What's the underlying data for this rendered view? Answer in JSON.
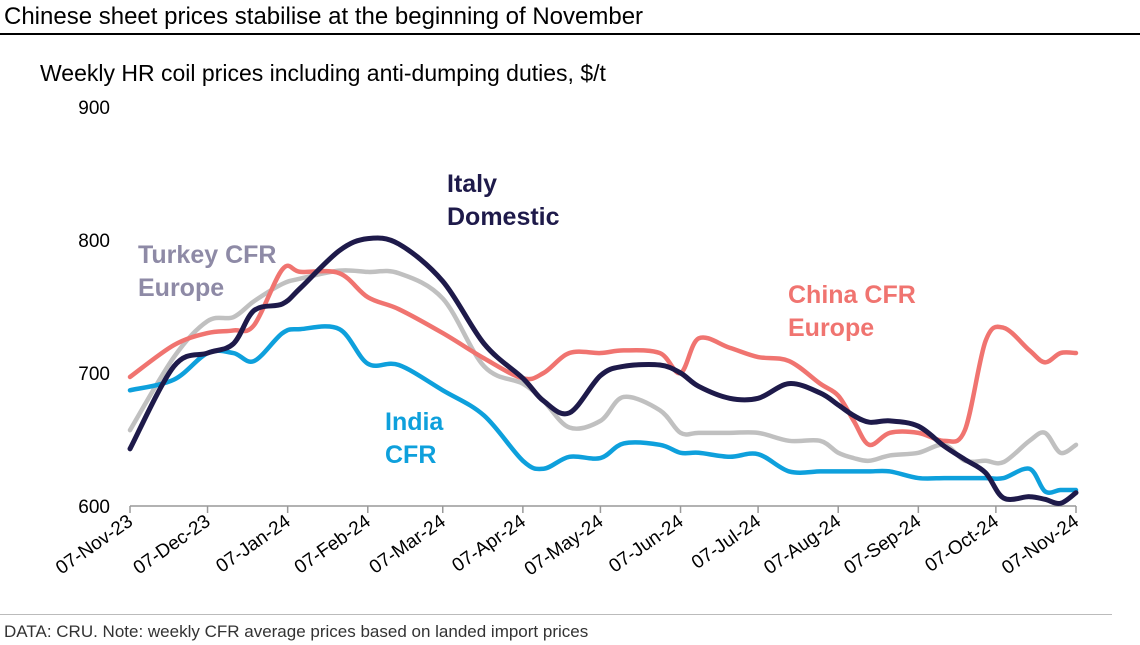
{
  "title": "Chinese sheet prices stabilise at the beginning of November",
  "footer": "DATA: CRU. Note: weekly CFR average prices based on landed import prices",
  "chart_data": {
    "type": "line",
    "title": "Weekly HR coil prices including anti-dumping duties, $/t",
    "xlabel": "",
    "ylabel": "",
    "xlim": [
      "2023-11-07",
      "2024-11-07"
    ],
    "ylim": [
      600,
      900
    ],
    "yticks": [
      600,
      700,
      800,
      900
    ],
    "xtick_labels": [
      "07-Nov-23",
      "07-Dec-23",
      "07-Jan-24",
      "07-Feb-24",
      "07-Mar-24",
      "07-Apr-24",
      "07-May-24",
      "07-Jun-24",
      "07-Jul-24",
      "07-Aug-24",
      "07-Sep-24",
      "07-Oct-24",
      "07-Nov-24"
    ],
    "xtick_dates": [
      "2023-11-07",
      "2023-12-07",
      "2024-01-07",
      "2024-02-07",
      "2024-03-07",
      "2024-04-07",
      "2024-05-07",
      "2024-06-07",
      "2024-07-07",
      "2024-08-07",
      "2024-09-07",
      "2024-10-07",
      "2024-11-07"
    ],
    "grid": false,
    "legend": "inline labels",
    "x": [
      "2023-11-07",
      "2023-11-24",
      "2023-12-07",
      "2023-12-17",
      "2023-12-25",
      "2024-01-05",
      "2024-01-12",
      "2024-01-27",
      "2024-02-07",
      "2024-02-19",
      "2024-03-07",
      "2024-03-23",
      "2024-04-07",
      "2024-04-15",
      "2024-04-25",
      "2024-05-07",
      "2024-05-16",
      "2024-05-30",
      "2024-06-07",
      "2024-06-14",
      "2024-06-26",
      "2024-07-07",
      "2024-07-19",
      "2024-07-31",
      "2024-08-07",
      "2024-08-13",
      "2024-08-19",
      "2024-08-27",
      "2024-09-07",
      "2024-09-17",
      "2024-09-25",
      "2024-10-03",
      "2024-10-10",
      "2024-10-20",
      "2024-10-26",
      "2024-11-01",
      "2024-11-07"
    ],
    "series": [
      {
        "name": "Turkey CFR Europe",
        "color": "#c0c0c0",
        "label_lines": [
          "Turkey CFR",
          "Europe"
        ],
        "label_color": "#8e8aa6",
        "values": [
          657,
          712,
          739,
          742,
          754,
          767,
          771,
          777,
          776,
          775,
          756,
          705,
          692,
          679,
          659,
          664,
          682,
          672,
          655,
          655,
          655,
          655,
          649,
          649,
          640,
          636,
          634,
          638,
          640,
          646,
          634,
          634,
          633,
          649,
          655,
          640,
          646
        ]
      },
      {
        "name": "China CFR Europe",
        "color": "#f07470",
        "label_lines": [
          "China CFR",
          "Europe"
        ],
        "label_color": "#f07470",
        "values": [
          697,
          721,
          730,
          732,
          736,
          778,
          776,
          775,
          757,
          748,
          730,
          711,
          696,
          700,
          715,
          715,
          717,
          715,
          700,
          726,
          719,
          712,
          709,
          692,
          683,
          664,
          646,
          655,
          655,
          649,
          657,
          724,
          734,
          717,
          708,
          715,
          715
        ]
      },
      {
        "name": "India CFR",
        "color": "#0ea0dc",
        "label_lines": [
          "India",
          "CFR"
        ],
        "label_color": "#0ea0dc",
        "values": [
          687,
          695,
          715,
          715,
          709,
          730,
          733,
          733,
          707,
          706,
          687,
          668,
          634,
          628,
          637,
          636,
          647,
          646,
          640,
          640,
          637,
          639,
          626,
          626,
          626,
          626,
          626,
          626,
          621,
          621,
          621,
          621,
          621,
          628,
          611,
          612,
          612
        ]
      },
      {
        "name": "Italy Domestic",
        "color": "#1e1a4a",
        "label_lines": [
          "Italy",
          "Domestic"
        ],
        "label_color": "#1e1a4a",
        "values": [
          643,
          705,
          715,
          722,
          747,
          752,
          764,
          792,
          801,
          797,
          769,
          722,
          696,
          679,
          670,
          698,
          705,
          706,
          700,
          690,
          681,
          681,
          692,
          685,
          676,
          668,
          663,
          664,
          660,
          645,
          635,
          625,
          606,
          607,
          605,
          602,
          610
        ]
      }
    ]
  }
}
